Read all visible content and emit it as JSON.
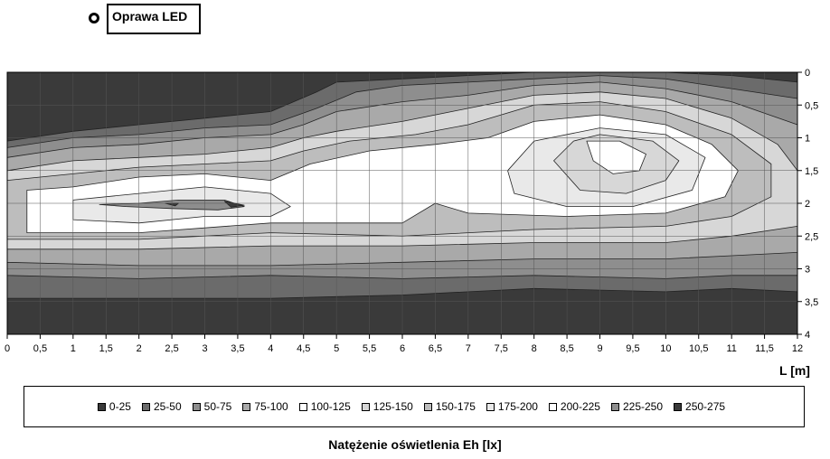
{
  "marker": {
    "label": "Oprawa LED"
  },
  "chart_data": {
    "type": "heatmap",
    "title": "Natężenie oświetlenia Eh [lx]",
    "xlabel": "L [m]",
    "ylabel": "",
    "xlim": [
      0,
      12
    ],
    "ylim": [
      0,
      4
    ],
    "x_ticks": [
      "0",
      "0,5",
      "1",
      "1,5",
      "2",
      "2,5",
      "3",
      "3,5",
      "4",
      "4,5",
      "5",
      "5,5",
      "6",
      "6,5",
      "7",
      "7,5",
      "8",
      "8,5",
      "9",
      "9,5",
      "10",
      "10,5",
      "11",
      "11,5",
      "12"
    ],
    "y_ticks": [
      "0",
      "0,5",
      "1",
      "1,5",
      "2",
      "2,5",
      "3",
      "3,5",
      "4"
    ],
    "grid": true,
    "legend_position": "bottom",
    "bands": [
      {
        "label": "0-25",
        "color": "#3a3a3a"
      },
      {
        "label": "25-50",
        "color": "#6b6b6b"
      },
      {
        "label": "50-75",
        "color": "#8e8e8e"
      },
      {
        "label": "75-100",
        "color": "#a9a9a9"
      },
      {
        "label": "100-125",
        "color": "#ffffff"
      },
      {
        "label": "125-150",
        "color": "#d7d7d7"
      },
      {
        "label": "150-175",
        "color": "#bdbdbd"
      },
      {
        "label": "175-200",
        "color": "#e9e9e9"
      },
      {
        "label": "200-225",
        "color": "#ffffff"
      },
      {
        "label": "225-250",
        "color": "#8e8e8e"
      },
      {
        "label": "250-275",
        "color": "#3a3a3a"
      }
    ],
    "bands_order_note": "",
    "contours": [
      {
        "band": 1,
        "points": [
          [
            0,
            1.05
          ],
          [
            1,
            0.9
          ],
          [
            2,
            0.8
          ],
          [
            3,
            0.7
          ],
          [
            4,
            0.6
          ],
          [
            4.7,
            0.3
          ],
          [
            5,
            0.15
          ],
          [
            6,
            0.1
          ],
          [
            7,
            0.05
          ],
          [
            8,
            0
          ],
          [
            9,
            0
          ],
          [
            10,
            0
          ],
          [
            11,
            0.05
          ],
          [
            12,
            0.15
          ],
          [
            12,
            3.35
          ],
          [
            11,
            3.3
          ],
          [
            10,
            3.35
          ],
          [
            8,
            3.3
          ],
          [
            6,
            3.4
          ],
          [
            4,
            3.45
          ],
          [
            2,
            3.45
          ],
          [
            0,
            3.45
          ]
        ]
      },
      {
        "band": 2,
        "points": [
          [
            0,
            1.15
          ],
          [
            1,
            1.0
          ],
          [
            2,
            0.95
          ],
          [
            3,
            0.85
          ],
          [
            4,
            0.8
          ],
          [
            4.7,
            0.55
          ],
          [
            5.3,
            0.3
          ],
          [
            6,
            0.2
          ],
          [
            7,
            0.15
          ],
          [
            8,
            0.1
          ],
          [
            9,
            0.05
          ],
          [
            10,
            0.1
          ],
          [
            11,
            0.25
          ],
          [
            12,
            0.4
          ],
          [
            12,
            3.1
          ],
          [
            11,
            3.1
          ],
          [
            10,
            3.15
          ],
          [
            8,
            3.1
          ],
          [
            6,
            3.15
          ],
          [
            4,
            3.1
          ],
          [
            2,
            3.15
          ],
          [
            0,
            3.1
          ]
        ]
      },
      {
        "band": 3,
        "points": [
          [
            0,
            1.3
          ],
          [
            1,
            1.15
          ],
          [
            2,
            1.1
          ],
          [
            3,
            1.0
          ],
          [
            4,
            0.95
          ],
          [
            4.5,
            0.8
          ],
          [
            5,
            0.6
          ],
          [
            6,
            0.45
          ],
          [
            7,
            0.35
          ],
          [
            8,
            0.2
          ],
          [
            9,
            0.15
          ],
          [
            10,
            0.25
          ],
          [
            11,
            0.45
          ],
          [
            12,
            0.8
          ],
          [
            12,
            2.75
          ],
          [
            11,
            2.8
          ],
          [
            10,
            2.85
          ],
          [
            8,
            2.85
          ],
          [
            6,
            2.9
          ],
          [
            4,
            2.95
          ],
          [
            2,
            2.95
          ],
          [
            0,
            2.9
          ]
        ]
      },
      {
        "band": 5,
        "points": [
          [
            0,
            1.5
          ],
          [
            1,
            1.35
          ],
          [
            2,
            1.3
          ],
          [
            3,
            1.25
          ],
          [
            4,
            1.15
          ],
          [
            4.5,
            1.0
          ],
          [
            5,
            0.9
          ],
          [
            6,
            0.75
          ],
          [
            7,
            0.55
          ],
          [
            8,
            0.35
          ],
          [
            9,
            0.3
          ],
          [
            10,
            0.4
          ],
          [
            11,
            0.7
          ],
          [
            11.7,
            1.1
          ],
          [
            12,
            1.5
          ],
          [
            12,
            2.35
          ],
          [
            11,
            2.5
          ],
          [
            10,
            2.6
          ],
          [
            8,
            2.6
          ],
          [
            6,
            2.65
          ],
          [
            4,
            2.65
          ],
          [
            2,
            2.7
          ],
          [
            0,
            2.7
          ]
        ]
      },
      {
        "band": 6,
        "points": [
          [
            0,
            1.65
          ],
          [
            1,
            1.55
          ],
          [
            2,
            1.45
          ],
          [
            3,
            1.4
          ],
          [
            4,
            1.35
          ],
          [
            4.5,
            1.2
          ],
          [
            5.2,
            1.05
          ],
          [
            6.2,
            0.95
          ],
          [
            7,
            0.8
          ],
          [
            8,
            0.5
          ],
          [
            9,
            0.45
          ],
          [
            10,
            0.6
          ],
          [
            11,
            0.95
          ],
          [
            11.6,
            1.4
          ],
          [
            11.6,
            1.9
          ],
          [
            11,
            2.2
          ],
          [
            10,
            2.35
          ],
          [
            8,
            2.4
          ],
          [
            6,
            2.5
          ],
          [
            4,
            2.45
          ],
          [
            2,
            2.55
          ],
          [
            0,
            2.55
          ]
        ]
      },
      {
        "band": 4,
        "points": [
          [
            0.3,
            1.8
          ],
          [
            1,
            1.75
          ],
          [
            2,
            1.6
          ],
          [
            3,
            1.55
          ],
          [
            4,
            1.65
          ],
          [
            4.6,
            1.4
          ],
          [
            5.5,
            1.2
          ],
          [
            6.5,
            1.1
          ],
          [
            7.3,
            1.0
          ],
          [
            8,
            0.75
          ],
          [
            9,
            0.65
          ],
          [
            10,
            0.8
          ],
          [
            10.7,
            1.1
          ],
          [
            11.1,
            1.5
          ],
          [
            10.9,
            1.9
          ],
          [
            10,
            2.15
          ],
          [
            8.5,
            2.2
          ],
          [
            7,
            2.15
          ],
          [
            6.5,
            2.0
          ],
          [
            6,
            2.3
          ],
          [
            4,
            2.3
          ],
          [
            2,
            2.45
          ],
          [
            0.3,
            2.45
          ]
        ]
      },
      {
        "band": 7,
        "points": [
          [
            1,
            1.95
          ],
          [
            2,
            1.85
          ],
          [
            3,
            1.75
          ],
          [
            4,
            1.85
          ],
          [
            4.3,
            2.05
          ],
          [
            4,
            2.2
          ],
          [
            3,
            2.2
          ],
          [
            2,
            2.3
          ],
          [
            1,
            2.25
          ]
        ]
      },
      {
        "band": 7,
        "points": [
          [
            7.6,
            1.5
          ],
          [
            8,
            1.05
          ],
          [
            9,
            0.85
          ],
          [
            10,
            0.95
          ],
          [
            10.6,
            1.3
          ],
          [
            10.4,
            1.8
          ],
          [
            9.5,
            2.05
          ],
          [
            8.5,
            2.05
          ],
          [
            7.7,
            1.85
          ]
        ]
      },
      {
        "band": 5,
        "points": [
          [
            8.3,
            1.35
          ],
          [
            8.6,
            1.05
          ],
          [
            9,
            0.95
          ],
          [
            9.8,
            1.05
          ],
          [
            10.2,
            1.35
          ],
          [
            10,
            1.65
          ],
          [
            9.4,
            1.85
          ],
          [
            8.7,
            1.8
          ]
        ]
      },
      {
        "band": 8,
        "points": [
          [
            8.8,
            1.05
          ],
          [
            9.3,
            1.05
          ],
          [
            9.7,
            1.25
          ],
          [
            9.6,
            1.5
          ],
          [
            9.2,
            1.55
          ],
          [
            8.9,
            1.35
          ]
        ]
      },
      {
        "band": 2,
        "points": [
          [
            1.4,
            2.02
          ],
          [
            2,
            2.0
          ],
          [
            2.6,
            1.95
          ],
          [
            3.3,
            1.95
          ],
          [
            3.6,
            2.05
          ],
          [
            3.2,
            2.1
          ],
          [
            2.5,
            2.08
          ],
          [
            1.8,
            2.05
          ]
        ]
      },
      {
        "band": 10,
        "points": [
          [
            2.4,
            2.0
          ],
          [
            2.6,
            2.0
          ],
          [
            2.55,
            2.04
          ]
        ]
      },
      {
        "band": 10,
        "points": [
          [
            3.3,
            1.97
          ],
          [
            3.6,
            2.03
          ],
          [
            3.4,
            2.06
          ]
        ]
      }
    ]
  }
}
